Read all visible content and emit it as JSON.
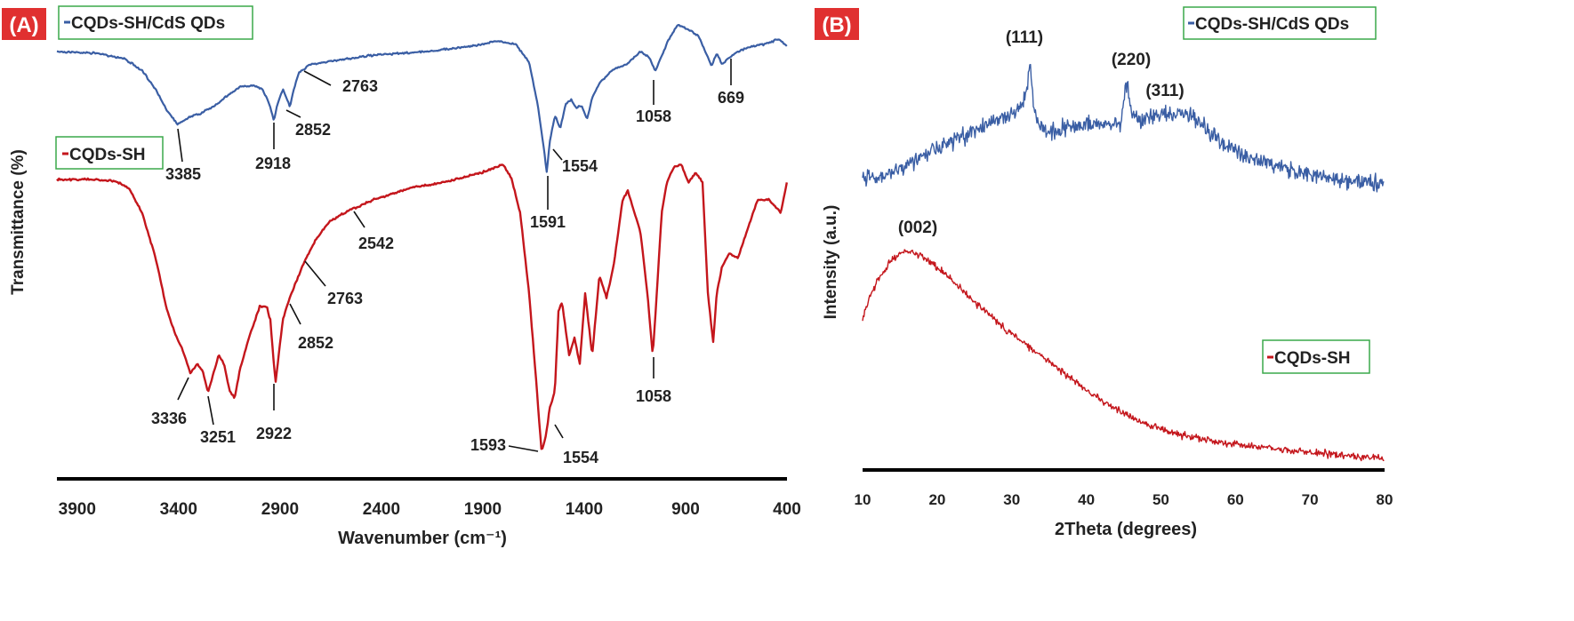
{
  "chart_data": [
    {
      "panel_label": "(A)",
      "type": "line",
      "xlabel": "Wavenumber (cm⁻¹)",
      "ylabel": "Transmittance (%)",
      "xlim": [
        4000,
        400
      ],
      "x_reversed": true,
      "xticks": [
        "3900",
        "3400",
        "2900",
        "2400",
        "1900",
        "1400",
        "900",
        "400"
      ],
      "y_ticks_shown": false,
      "grid": false,
      "series": [
        {
          "name": "CQDs-SH/CdS QDs",
          "color": "#3a5ea4",
          "peaks": [
            {
              "label": "3385",
              "x": 3385
            },
            {
              "label": "2918",
              "x": 2918
            },
            {
              "label": "2852",
              "x": 2852
            },
            {
              "label": "2763",
              "x": 2763
            },
            {
              "label": "1591",
              "x": 1591
            },
            {
              "label": "1554",
              "x": 1554
            },
            {
              "label": "1058",
              "x": 1058
            },
            {
              "label": "669",
              "x": 669
            }
          ]
        },
        {
          "name": "CQDs-SH",
          "color": "#c4161c",
          "peaks": [
            {
              "label": "3336",
              "x": 3336
            },
            {
              "label": "3251",
              "x": 3251
            },
            {
              "label": "2922",
              "x": 2922
            },
            {
              "label": "2852",
              "x": 2852
            },
            {
              "label": "2763",
              "x": 2763
            },
            {
              "label": "2542",
              "x": 2542
            },
            {
              "label": "1593",
              "x": 1593
            },
            {
              "label": "1554",
              "x": 1554
            },
            {
              "label": "1058",
              "x": 1058
            }
          ]
        }
      ]
    },
    {
      "panel_label": "(B)",
      "type": "line",
      "xlabel": "2Theta (degrees)",
      "ylabel": "Intensity (a.u.)",
      "xlim": [
        10,
        80
      ],
      "xticks": [
        "10",
        "20",
        "30",
        "40",
        "50",
        "60",
        "70",
        "80"
      ],
      "y_ticks_shown": false,
      "grid": false,
      "series": [
        {
          "name": "CQDs-SH/CdS QDs",
          "color": "#3a5ea4",
          "peaks": [
            {
              "label": "(111)",
              "x": 32.2
            },
            {
              "label": "(220)",
              "x": 45.9
            },
            {
              "label": "(311)",
              "x": 49.5
            }
          ]
        },
        {
          "name": "CQDs-SH",
          "color": "#c4161c",
          "peaks": [
            {
              "label": "(002)",
              "x": 19.0
            }
          ]
        }
      ]
    }
  ]
}
